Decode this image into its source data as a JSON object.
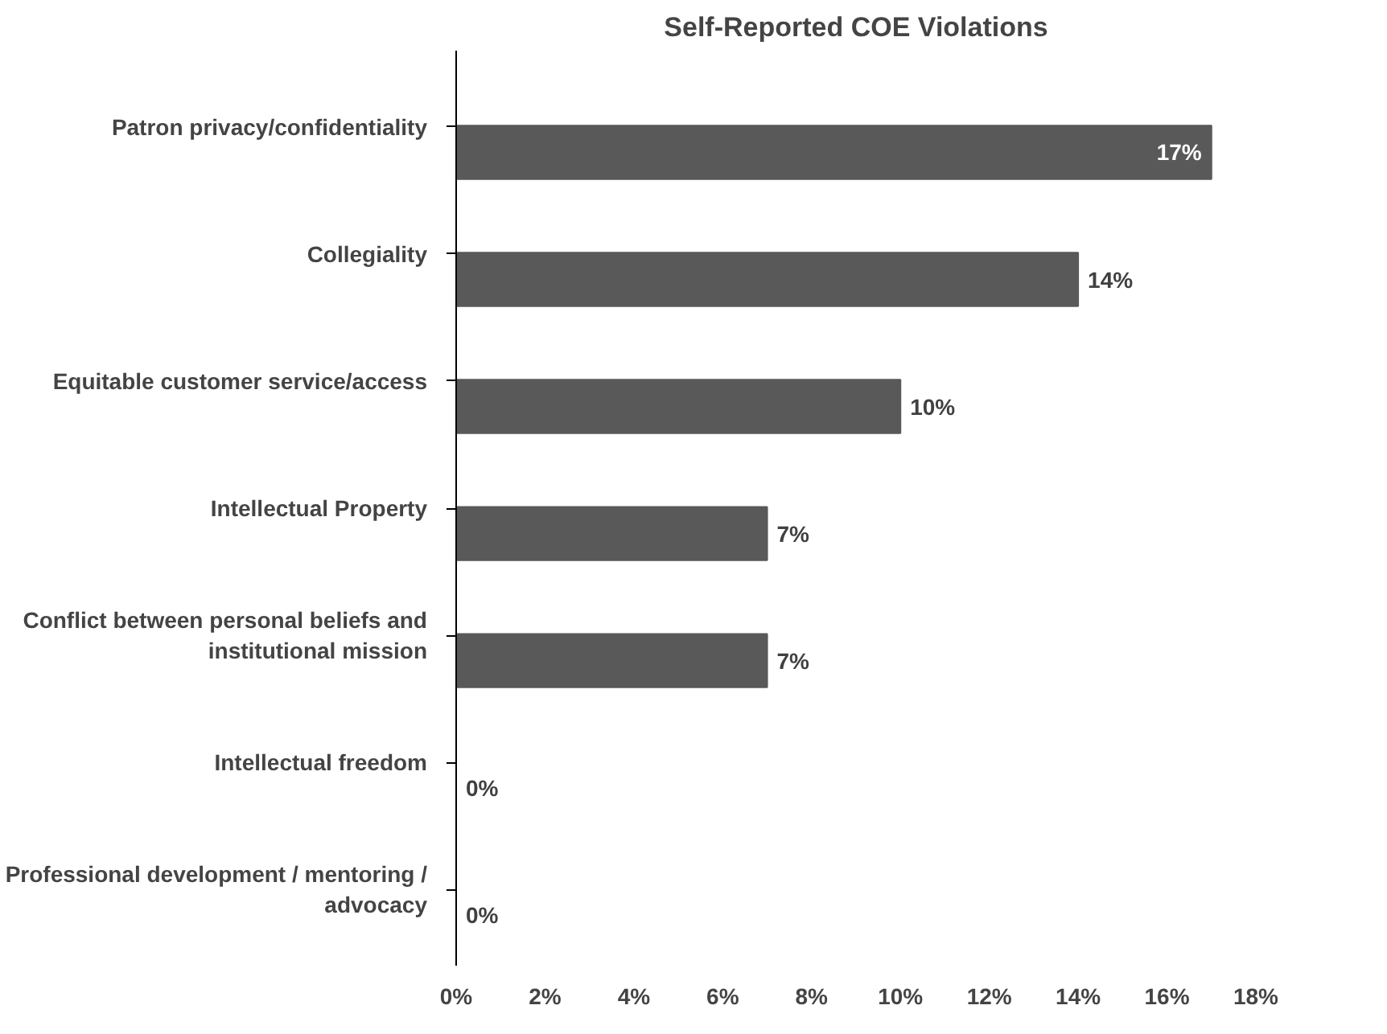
{
  "chart_data": {
    "type": "bar",
    "orientation": "horizontal",
    "title": "Self-Reported COE Violations",
    "categories": [
      "Patron privacy/confidentiality",
      "Collegiality",
      "Equitable customer service/access",
      "Intellectual Property",
      "Conflict between personal beliefs and institutional mission",
      "Intellectual freedom",
      "Professional development / mentoring / advocacy"
    ],
    "values": [
      17,
      14,
      10,
      7,
      7,
      0,
      0
    ],
    "value_labels": [
      "17%",
      "14%",
      "10%",
      "7%",
      "7%",
      "0%",
      "0%"
    ],
    "color": "#595959",
    "xlim": [
      0,
      18
    ],
    "xticks": [
      {
        "value": 0,
        "label": "0%"
      },
      {
        "value": 2,
        "label": "2%"
      },
      {
        "value": 4,
        "label": "4%"
      },
      {
        "value": 6,
        "label": "6%"
      },
      {
        "value": 8,
        "label": "8%"
      },
      {
        "value": 10,
        "label": "10%"
      },
      {
        "value": 12,
        "label": "12%"
      },
      {
        "value": 14,
        "label": "14%"
      },
      {
        "value": 16,
        "label": "16%"
      },
      {
        "value": 18,
        "label": "18%"
      }
    ],
    "grid": false
  }
}
